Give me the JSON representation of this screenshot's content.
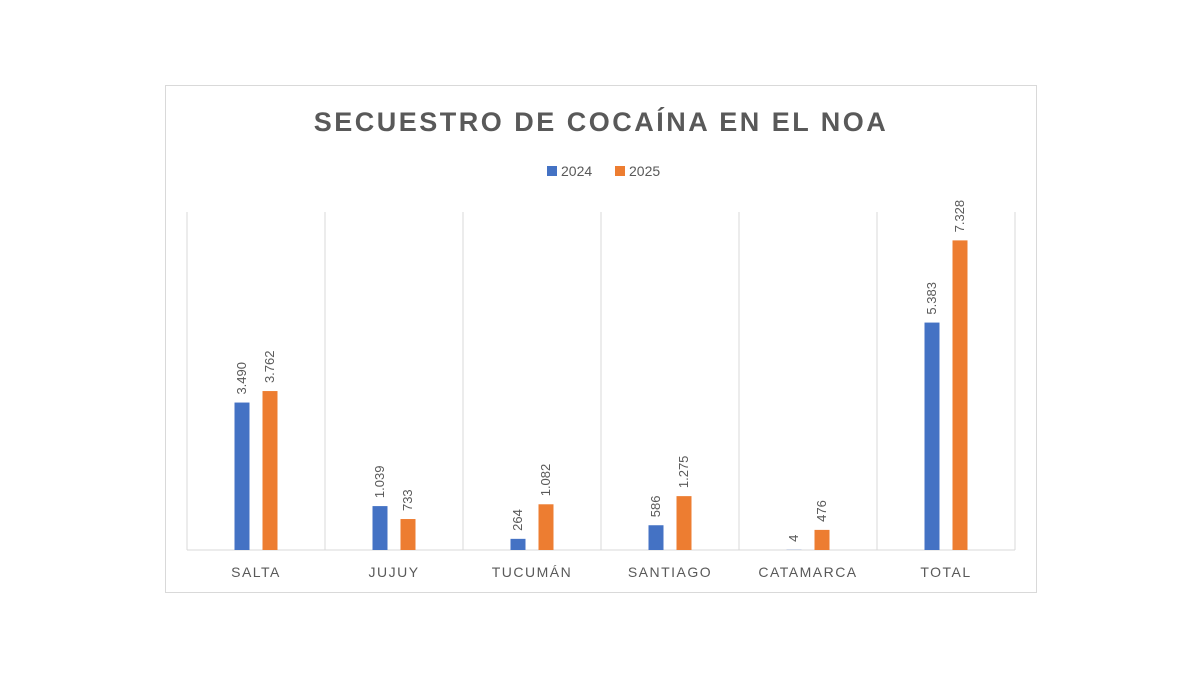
{
  "chart_data": {
    "type": "bar",
    "title": "SECUESTRO DE COCAÍNA EN EL NOA",
    "categories": [
      "SALTA",
      "JUJUY",
      "TUCUMÁN",
      "SANTIAGO",
      "CATAMARCA",
      "TOTAL"
    ],
    "series": [
      {
        "name": "2024",
        "color": "#4472c4",
        "values": [
          3490,
          1039,
          264,
          586,
          4,
          5383
        ],
        "labels": [
          "3.490",
          "1.039",
          "264",
          "586",
          "4",
          "5.383"
        ]
      },
      {
        "name": "2025",
        "color": "#ed7d31",
        "values": [
          3762,
          733,
          1082,
          1275,
          476,
          7328
        ],
        "labels": [
          "3.762",
          "733",
          "1.082",
          "1.275",
          "476",
          "7.328"
        ]
      }
    ],
    "xlabel": "",
    "ylabel": "",
    "ylim": [
      0,
      8000
    ],
    "legend_position": "top",
    "grid": "vertical category separators"
  }
}
